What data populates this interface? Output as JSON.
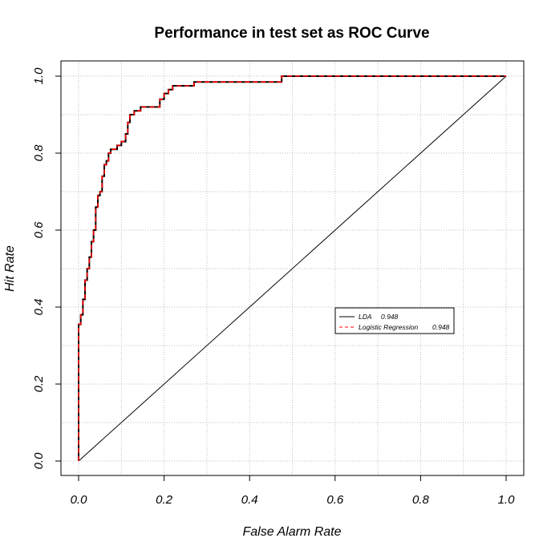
{
  "chart_data": {
    "type": "line",
    "title": "Performance in test set as ROC Curve",
    "xlabel": "False Alarm Rate",
    "ylabel": "Hit Rate",
    "xlim": [
      0,
      1
    ],
    "ylim": [
      0,
      1
    ],
    "xticks": [
      "0.0",
      "0.2",
      "0.4",
      "0.6",
      "0.8",
      "1.0"
    ],
    "yticks": [
      "0.0",
      "0.2",
      "0.4",
      "0.6",
      "0.8",
      "1.0"
    ],
    "grid": true,
    "legend_position": "center-right",
    "series": [
      {
        "name": "LDA",
        "auc": "0.948",
        "color": "#000000",
        "dash": "solid",
        "x": [
          0,
          0,
          0.005,
          0.005,
          0.01,
          0.01,
          0.015,
          0.015,
          0.02,
          0.02,
          0.025,
          0.025,
          0.03,
          0.03,
          0.035,
          0.035,
          0.04,
          0.04,
          0.045,
          0.045,
          0.05,
          0.05,
          0.055,
          0.055,
          0.06,
          0.06,
          0.065,
          0.065,
          0.07,
          0.07,
          0.075,
          0.075,
          0.09,
          0.09,
          0.1,
          0.1,
          0.11,
          0.11,
          0.115,
          0.115,
          0.12,
          0.12,
          0.13,
          0.13,
          0.145,
          0.145,
          0.19,
          0.19,
          0.2,
          0.2,
          0.21,
          0.21,
          0.22,
          0.22,
          0.27,
          0.27,
          0.475,
          0.475,
          1.0
        ],
        "y": [
          0,
          0.355,
          0.355,
          0.38,
          0.38,
          0.42,
          0.42,
          0.47,
          0.47,
          0.5,
          0.5,
          0.53,
          0.53,
          0.57,
          0.57,
          0.6,
          0.6,
          0.66,
          0.66,
          0.69,
          0.69,
          0.7,
          0.7,
          0.74,
          0.74,
          0.77,
          0.77,
          0.78,
          0.78,
          0.8,
          0.8,
          0.81,
          0.81,
          0.82,
          0.82,
          0.83,
          0.83,
          0.85,
          0.85,
          0.88,
          0.88,
          0.9,
          0.9,
          0.91,
          0.91,
          0.92,
          0.92,
          0.94,
          0.94,
          0.955,
          0.955,
          0.965,
          0.965,
          0.975,
          0.975,
          0.985,
          0.985,
          1.0,
          1.0
        ]
      },
      {
        "name": "Logistic Regression",
        "auc": "0.948",
        "color": "#ff0000",
        "dash": "dashed",
        "x": [
          0,
          0,
          0.005,
          0.005,
          0.01,
          0.01,
          0.015,
          0.015,
          0.02,
          0.02,
          0.025,
          0.025,
          0.03,
          0.03,
          0.035,
          0.035,
          0.04,
          0.04,
          0.045,
          0.045,
          0.05,
          0.05,
          0.055,
          0.055,
          0.06,
          0.06,
          0.065,
          0.065,
          0.07,
          0.07,
          0.075,
          0.075,
          0.09,
          0.09,
          0.1,
          0.1,
          0.11,
          0.11,
          0.115,
          0.115,
          0.12,
          0.12,
          0.13,
          0.13,
          0.145,
          0.145,
          0.19,
          0.19,
          0.2,
          0.2,
          0.21,
          0.21,
          0.22,
          0.22,
          0.27,
          0.27,
          0.475,
          0.475,
          1.0
        ],
        "y": [
          0,
          0.355,
          0.355,
          0.38,
          0.38,
          0.42,
          0.42,
          0.47,
          0.47,
          0.5,
          0.5,
          0.53,
          0.53,
          0.57,
          0.57,
          0.6,
          0.6,
          0.66,
          0.66,
          0.69,
          0.69,
          0.7,
          0.7,
          0.74,
          0.74,
          0.77,
          0.77,
          0.78,
          0.78,
          0.8,
          0.8,
          0.81,
          0.81,
          0.82,
          0.82,
          0.83,
          0.83,
          0.85,
          0.85,
          0.88,
          0.88,
          0.9,
          0.9,
          0.91,
          0.91,
          0.92,
          0.92,
          0.94,
          0.94,
          0.955,
          0.955,
          0.965,
          0.965,
          0.975,
          0.975,
          0.985,
          0.985,
          1.0,
          1.0
        ]
      }
    ],
    "reference_line": {
      "x": [
        0,
        1
      ],
      "y": [
        0,
        1
      ],
      "color": "#000000"
    },
    "grid_color": "#bebebe"
  }
}
